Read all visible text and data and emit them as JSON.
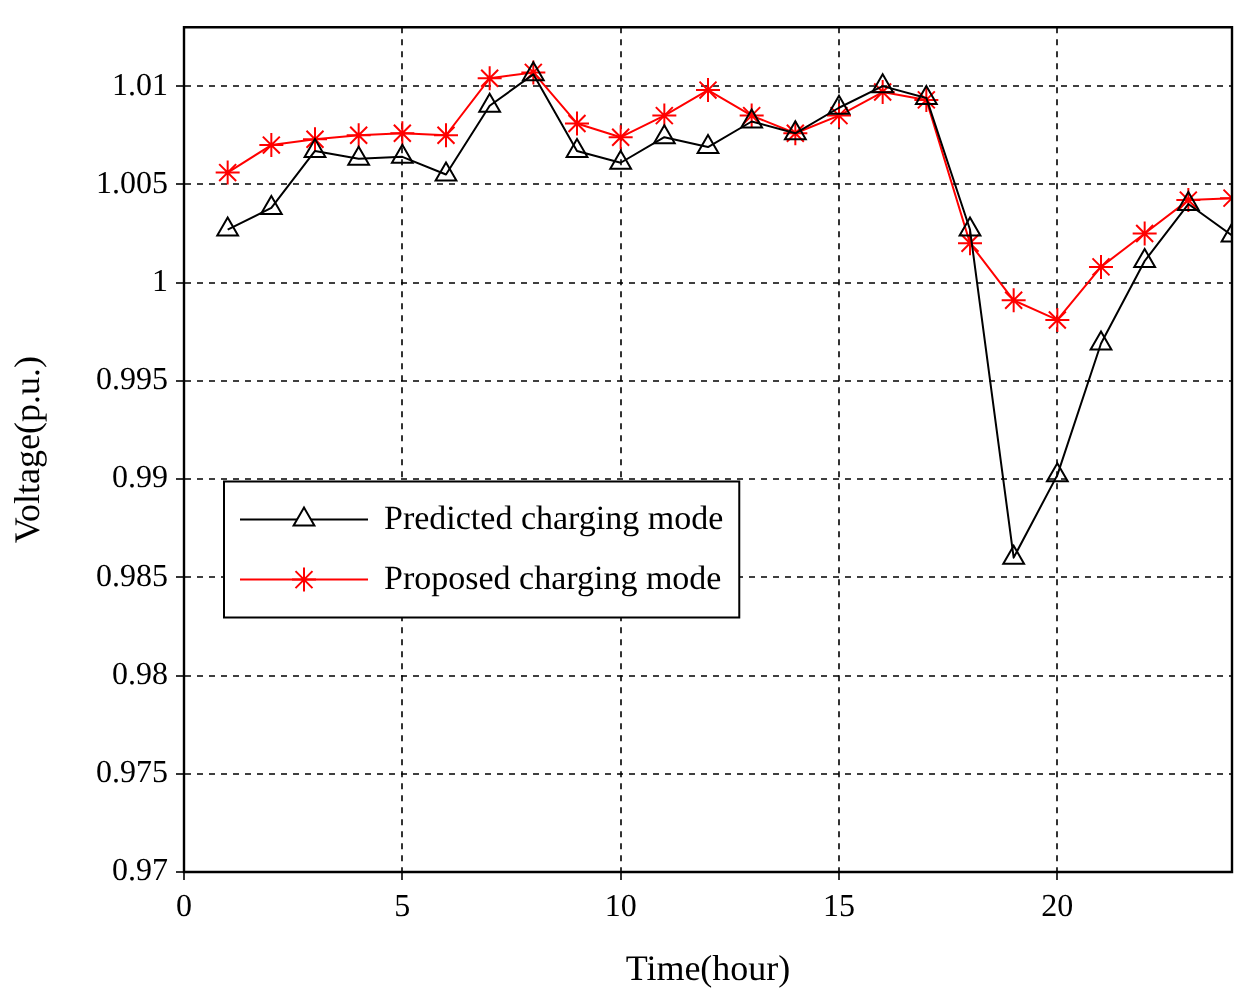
{
  "chart_data": {
    "type": "line",
    "xlabel": "Time(hour)",
    "ylabel": "Voltage(p.u.)",
    "x": [
      1,
      2,
      3,
      4,
      5,
      6,
      7,
      8,
      9,
      10,
      11,
      12,
      13,
      14,
      15,
      16,
      17,
      18,
      19,
      20,
      21,
      22,
      23,
      24
    ],
    "series": [
      {
        "name": "Predicted charging mode",
        "color": "#000000",
        "marker": "triangle",
        "values": [
          1.0027,
          1.0038,
          1.0067,
          1.0063,
          1.0064,
          1.0055,
          1.009,
          1.0106,
          1.0067,
          1.0061,
          1.0074,
          1.0069,
          1.0082,
          1.0076,
          1.0089,
          1.01,
          1.0094,
          1.0027,
          0.986,
          0.9902,
          0.9969,
          1.0011,
          1.004,
          1.0024
        ]
      },
      {
        "name": "Proposed charging mode",
        "color": "#ff0000",
        "marker": "cross",
        "values": [
          1.0056,
          1.007,
          1.0073,
          1.0075,
          1.0076,
          1.0075,
          1.0104,
          1.0107,
          1.0081,
          1.0074,
          1.0085,
          1.0098,
          1.0085,
          1.0076,
          1.0085,
          1.0097,
          1.0093,
          1.002,
          0.9991,
          0.9981,
          1.0008,
          1.0025,
          1.0042,
          1.0043
        ]
      }
    ],
    "xlim": [
      0,
      24
    ],
    "xticks": [
      0,
      5,
      10,
      15,
      20
    ],
    "ylim": [
      0.97,
      1.013
    ],
    "yticks": [
      0.97,
      0.975,
      0.98,
      0.985,
      0.99,
      0.995,
      1,
      1.005,
      1.01
    ],
    "grid": true,
    "legend": "center left",
    "line_style": "solid"
  }
}
